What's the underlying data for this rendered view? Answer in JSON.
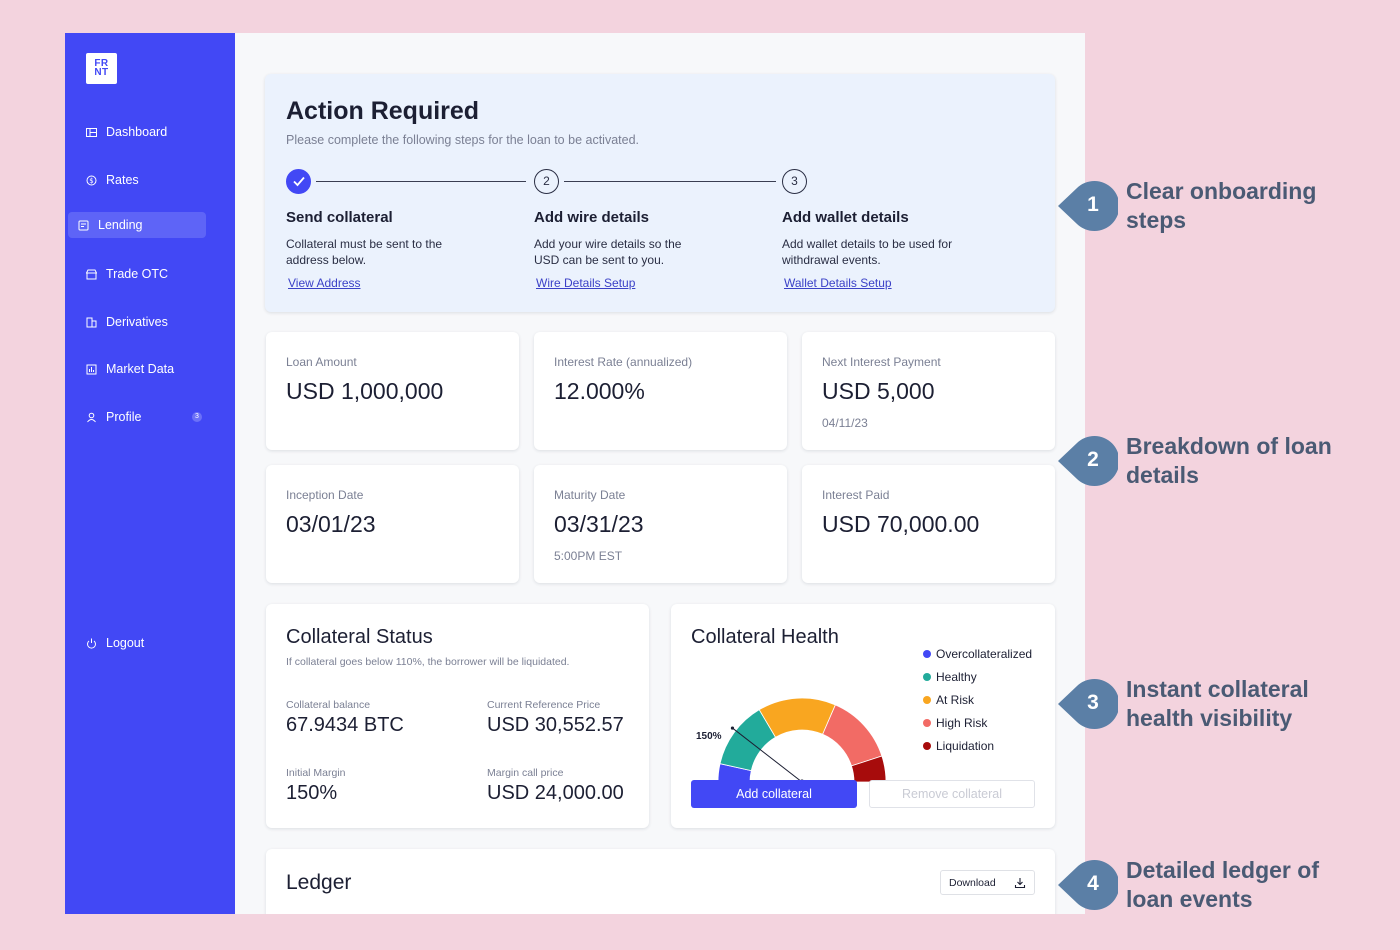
{
  "sidebar": {
    "logo": "FR NT",
    "items": [
      {
        "label": "Dashboard"
      },
      {
        "label": "Rates"
      },
      {
        "label": "Lending"
      },
      {
        "label": "Trade OTC"
      },
      {
        "label": "Derivatives"
      },
      {
        "label": "Market Data"
      },
      {
        "label": "Profile",
        "badge": "3"
      }
    ],
    "logout": "Logout",
    "active": "Lending"
  },
  "action": {
    "title": "Action Required",
    "subtitle": "Please complete the following steps for the loan to be activated.",
    "steps": [
      {
        "number": "1",
        "title": "Send collateral",
        "desc": "Collateral must be sent to the address below.",
        "link": "View Address",
        "done": true
      },
      {
        "number": "2",
        "title": "Add wire details",
        "desc": "Add your wire details so the USD can be sent to you.",
        "link": "Wire Details Setup",
        "done": false
      },
      {
        "number": "3",
        "title": "Add wallet details",
        "desc": "Add wallet details to be used for withdrawal events.",
        "link": "Wallet Details Setup",
        "done": false
      }
    ]
  },
  "stats": [
    {
      "label": "Loan Amount",
      "value": "USD 1,000,000",
      "note": ""
    },
    {
      "label": "Interest Rate (annualized)",
      "value": "12.000%",
      "note": ""
    },
    {
      "label": "Next Interest Payment",
      "value": "USD 5,000",
      "note": "04/11/23"
    },
    {
      "label": "Inception Date",
      "value": "03/01/23",
      "note": ""
    },
    {
      "label": "Maturity Date",
      "value": "03/31/23",
      "note": "5:00PM EST"
    },
    {
      "label": "Interest Paid",
      "value": "USD 70,000.00",
      "note": ""
    }
  ],
  "collateral_status": {
    "title": "Collateral Status",
    "subtitle": "If collateral goes below 110%, the borrower will be liquidated.",
    "balance_label": "Collateral balance",
    "balance": "67.9434 BTC",
    "ref_price_label": "Current Reference Price",
    "ref_price": "USD 30,552.57",
    "margin_label": "Initial Margin",
    "margin": "150%",
    "margin_call_label": "Margin call price",
    "margin_call": "USD 24,000.00"
  },
  "collateral_health": {
    "title": "Collateral Health",
    "gauge_label": "150%",
    "gauge_value_fraction": 0.21,
    "legend": [
      {
        "label": "Overcollateralized",
        "color": "#4248f5"
      },
      {
        "label": "Healthy",
        "color": "#22ab9b"
      },
      {
        "label": "At Risk",
        "color": "#f9a620"
      },
      {
        "label": "High Risk",
        "color": "#f26b65"
      },
      {
        "label": "Liquidation",
        "color": "#a70c0c"
      }
    ],
    "add_button": "Add collateral",
    "remove_button": "Remove collateral"
  },
  "ledger": {
    "title": "Ledger",
    "download": "Download"
  },
  "annotations": [
    {
      "number": "1",
      "text": "Clear onboarding steps"
    },
    {
      "number": "2",
      "text": "Breakdown of loan details"
    },
    {
      "number": "3",
      "text": "Instant collateral health visibility"
    },
    {
      "number": "4",
      "text": "Detailed ledger of loan events"
    }
  ],
  "colors": {
    "background": "#f3d3de",
    "brand": "#4248f5",
    "annotation": "#5b7fa6"
  }
}
